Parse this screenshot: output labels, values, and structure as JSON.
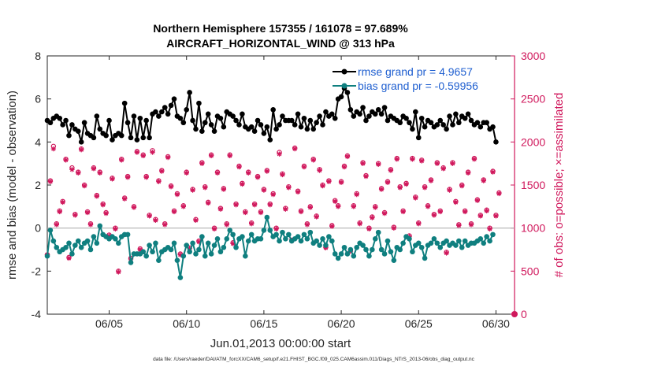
{
  "chart_data": {
    "type": "line",
    "title_line1": "Northern Hemisphere 157355 / 161078 = 97.689%",
    "title_line2": "AIRCRAFT_HORIZONTAL_WIND @ 313 hPa",
    "xlabel": "Jun.01,2013 00:00:00 start",
    "ylabel_left": "rmse and bias (model - observation)",
    "ylabel_right": "# of obs: o=possible; ×=assimilated",
    "footer": "data file: /Users/raeder/DAI/ATM_forcXX/CAM6_setup/f.e21.FHIST_BGC.f09_025.CAM6assim.011/Diags_NTrS_2013-06/obs_diag_output.nc",
    "xlim": [
      1,
      31.2
    ],
    "ylim_left": [
      -4,
      8
    ],
    "ylim_right": [
      0,
      3000
    ],
    "x_ticks": [
      5,
      10,
      15,
      20,
      25,
      30
    ],
    "x_tick_labels": [
      "06/05",
      "06/10",
      "06/15",
      "06/20",
      "06/25",
      "06/30"
    ],
    "y_left_ticks": [
      -4,
      -2,
      0,
      2,
      4,
      6,
      8
    ],
    "y_left_tick_labels": [
      "-4",
      "-2",
      "0",
      "2",
      "4",
      "6",
      "8"
    ],
    "y_right_ticks": [
      0,
      500,
      1000,
      1500,
      2000,
      2500,
      3000
    ],
    "y_right_tick_labels": [
      "0",
      "500",
      "1000",
      "1500",
      "2000",
      "2500",
      "3000"
    ],
    "zero_line": 0,
    "legend_position": "top-right",
    "colors": {
      "rmse": "#000000",
      "bias": "#0f7f7f",
      "obs": "#d0185c",
      "legend_text": "#1f5fd0",
      "zero_line": "#b0b0b0",
      "right_axis": "#d0185c"
    },
    "series": [
      {
        "name": "rmse grand pr = 4.9657",
        "axis": "left",
        "values": [
          5.0,
          4.9,
          5.1,
          5.2,
          5.1,
          4.8,
          5.0,
          4.3,
          4.8,
          4.6,
          4.5,
          4.0,
          4.9,
          4.4,
          4.3,
          4.2,
          5.2,
          4.6,
          4.4,
          4.3,
          5.0,
          4.1,
          4.3,
          4.4,
          4.3,
          5.8,
          4.9,
          4.2,
          5.2,
          4.1,
          5.1,
          4.2,
          5.0,
          4.2,
          5.3,
          5.4,
          5.2,
          5.4,
          5.6,
          5.3,
          5.7,
          6.0,
          5.2,
          5.1,
          4.9,
          5.5,
          6.3,
          5.0,
          4.6,
          5.8,
          4.5,
          4.9,
          5.3,
          4.8,
          4.5,
          5.2,
          5.1,
          4.7,
          5.4,
          5.3,
          5.2,
          5.0,
          4.8,
          5.3,
          4.7,
          4.6,
          4.7,
          4.5,
          5.0,
          4.8,
          4.4,
          4.7,
          4.1,
          5.5,
          4.6,
          4.8,
          5.2,
          5.0,
          5.0,
          5.0,
          4.8,
          5.3,
          4.7,
          5.1,
          4.6,
          5.0,
          4.6,
          4.9,
          5.2,
          4.8,
          5.4,
          5.2,
          5.3,
          5.1,
          6.0,
          6.1,
          6.5,
          6.3,
          5.5,
          5.2,
          5.4,
          5.3,
          5.6,
          5.0,
          5.2,
          5.4,
          5.3,
          5.5,
          5.3,
          5.6,
          5.0,
          5.2,
          5.1,
          5.0,
          4.9,
          5.2,
          5.1,
          4.9,
          4.6,
          5.4,
          4.2,
          5.1,
          4.7,
          5.0,
          4.9,
          4.7,
          4.8,
          5.0,
          4.8,
          4.6,
          5.2,
          4.8,
          5.3,
          4.9,
          5.2,
          5.1,
          5.3,
          5.0,
          4.8,
          4.9,
          4.7,
          4.9,
          4.9,
          4.6,
          4.7,
          4.0
        ],
        "marker": "filled-circle"
      },
      {
        "name": "bias grand pr = -0.59956",
        "axis": "left",
        "values": [
          -1.3,
          -0.1,
          -0.6,
          -0.9,
          -1.1,
          -1.0,
          -0.9,
          -0.7,
          -1.2,
          -0.8,
          -0.6,
          -0.9,
          -0.7,
          -0.6,
          -1.0,
          -0.4,
          -0.7,
          0.1,
          -0.3,
          -0.4,
          -0.5,
          -0.4,
          -0.5,
          -0.7,
          -0.4,
          -0.3,
          -0.3,
          -1.6,
          -1.2,
          -1.2,
          -1.2,
          -1.1,
          -1.3,
          -0.8,
          -1.1,
          -0.7,
          -1.5,
          -1.1,
          -1.0,
          -0.9,
          -1.0,
          -0.7,
          -1.5,
          -2.3,
          -1.3,
          -0.8,
          -1.1,
          -0.7,
          -1.2,
          -1.0,
          -0.4,
          -1.3,
          -0.7,
          -1.2,
          -0.8,
          -0.5,
          -1.1,
          -0.9,
          -0.5,
          -0.1,
          -0.3,
          -0.9,
          -0.5,
          -0.4,
          -1.3,
          -0.6,
          -0.3,
          -0.6,
          -0.5,
          -0.5,
          -0.1,
          0.5,
          -0.1,
          -0.4,
          -0.3,
          -0.6,
          -0.2,
          -0.5,
          -0.3,
          -0.6,
          -0.5,
          -0.4,
          -0.6,
          -0.3,
          -0.5,
          -0.2,
          -0.7,
          -0.6,
          -0.8,
          -0.5,
          -0.8,
          -0.4,
          -0.6,
          -1.2,
          -1.4,
          -1.2,
          -0.9,
          -1.2,
          -1.0,
          -1.3,
          -0.9,
          -0.7,
          -0.8,
          -1.0,
          -1.3,
          -1.0,
          -0.5,
          -0.2,
          -1.0,
          -1.2,
          -0.6,
          -1.1,
          -1.5,
          -0.9,
          -1.0,
          -0.7,
          -0.4,
          -0.5,
          -1.1,
          -0.8,
          -0.7,
          -0.9,
          -1.4,
          -0.8,
          -0.7,
          -0.5,
          -0.7,
          -0.9,
          -0.7,
          -0.6,
          -0.8,
          -0.7,
          -0.8,
          -0.6,
          -0.9,
          -0.6,
          -0.8,
          -0.7,
          -0.7,
          -0.6,
          -0.5,
          -0.7,
          -0.4,
          -0.6,
          -0.3
        ],
        "marker": "filled-circle"
      },
      {
        "name": "possible obs",
        "axis": "right",
        "marker": "open-circle",
        "values": [
          690,
          1550,
          1950,
          1050,
          1200,
          1310,
          1800,
          660,
          1700,
          1160,
          1650,
          1920,
          1500,
          1190,
          1050,
          1700,
          1380,
          1650,
          1280,
          1180,
          920,
          1580,
          1000,
          500,
          1800,
          1350,
          1600,
          650,
          1250,
          1890,
          760,
          1850,
          1600,
          1150,
          1900,
          1100,
          1550,
          1670,
          1050,
          1830,
          1490,
          1200,
          1400,
          700,
          1260,
          1650,
          770,
          1450,
          1100,
          850,
          1760,
          1480,
          1300,
          1850,
          1000,
          1650,
          1230,
          1460,
          1050,
          1850,
          830,
          1280,
          1720,
          1520,
          1190,
          1650,
          1060,
          1280,
          1600,
          1190,
          1450,
          1670,
          1280,
          1400,
          1000,
          1880,
          1630,
          1230,
          1480,
          860,
          1930,
          1430,
          1200,
          1720,
          1050,
          1250,
          1800,
          1140,
          1680,
          1500,
          780,
          1550,
          1030,
          1320,
          1260,
          1540,
          1720,
          1840,
          740,
          1260,
          1400,
          1060,
          1760,
          1610,
          1000,
          1130,
          1250,
          1750,
          1460,
          1180,
          1540,
          1680,
          1010,
          1810,
          1480,
          1200,
          1520,
          910,
          1810,
          1360,
          1060,
          1790,
          1480,
          1260,
          1560,
          1160,
          1760,
          1200,
          1700,
          720,
          1450,
          1760,
          1310,
          1040,
          1500,
          1200,
          1650,
          1050,
          1810,
          1330,
          1150,
          1560,
          1210,
          1000,
          1660,
          1150,
          1410
        ]
      },
      {
        "name": "assimilated obs",
        "axis": "right",
        "marker": "asterisk",
        "values": [
          690,
          1540,
          1920,
          1040,
          1190,
          1300,
          1790,
          650,
          1680,
          1150,
          1640,
          1910,
          1490,
          1180,
          1040,
          1690,
          1370,
          1640,
          1270,
          1170,
          910,
          1570,
          990,
          490,
          1790,
          1340,
          1590,
          640,
          1240,
          1880,
          750,
          1840,
          1590,
          1140,
          1880,
          1090,
          1540,
          1660,
          1040,
          1820,
          1480,
          1190,
          1390,
          690,
          1250,
          1640,
          760,
          1440,
          1090,
          840,
          1750,
          1470,
          1290,
          1840,
          990,
          1640,
          1220,
          1450,
          1040,
          1840,
          820,
          1270,
          1710,
          1510,
          1180,
          1640,
          1050,
          1270,
          1590,
          1180,
          1440,
          1660,
          1270,
          1390,
          990,
          1860,
          1620,
          1220,
          1470,
          850,
          1920,
          1420,
          1190,
          1710,
          1040,
          1240,
          1790,
          1130,
          1670,
          1490,
          770,
          1540,
          1020,
          1310,
          1250,
          1530,
          1710,
          1830,
          730,
          1250,
          1390,
          1050,
          1750,
          1600,
          990,
          1120,
          1240,
          1740,
          1450,
          1170,
          1530,
          1670,
          1000,
          1800,
          1470,
          1190,
          1510,
          900,
          1800,
          1350,
          1050,
          1780,
          1470,
          1250,
          1550,
          1150,
          1750,
          1190,
          1690,
          710,
          1440,
          1750,
          1300,
          1030,
          1490,
          1190,
          1640,
          1040,
          1800,
          1320,
          1140,
          1550,
          1200,
          990,
          1650,
          1140,
          1400
        ]
      }
    ],
    "extra_marker": {
      "x": 31.2,
      "value": 0,
      "axis": "right",
      "marker": "filled-circle"
    }
  }
}
